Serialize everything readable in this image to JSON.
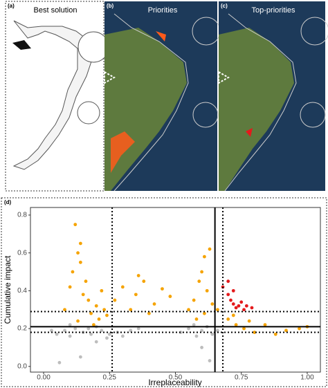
{
  "panels": [
    {
      "label": "(a)",
      "title": "Best solution"
    },
    {
      "label": "(b)",
      "title": "Priorities"
    },
    {
      "label": "(c)",
      "title": "Top-priorities"
    }
  ],
  "chart_data": {
    "type": "scatter",
    "panel_label": "(d)",
    "x_label": "Irreplaceability",
    "y_label": "Cumulative impact",
    "xlim": [
      -0.05,
      1.05
    ],
    "ylim": [
      -0.03,
      0.84
    ],
    "xticks": [
      {
        "value": 0,
        "label": "0.00"
      },
      {
        "value": 0.25,
        "label": "0.25"
      },
      {
        "value": 0.5,
        "label": "0.50"
      },
      {
        "value": 0.75,
        "label": "0.75"
      },
      {
        "value": 1,
        "label": "1.00"
      }
    ],
    "yticks": [
      {
        "value": 0,
        "label": "0.0"
      },
      0.2,
      0.4,
      0.6,
      0.8
    ],
    "grid": false,
    "reference_lines": {
      "x": [
        {
          "value": 0.26,
          "style": "dotted"
        },
        {
          "value": 0.65,
          "style": "solid"
        },
        {
          "value": 0.68,
          "style": "dotted"
        }
      ],
      "y": [
        {
          "value": 0.18,
          "style": "dotted"
        },
        {
          "value": 0.21,
          "style": "solid"
        },
        {
          "value": 0.29,
          "style": "dotted"
        }
      ]
    },
    "series": [
      {
        "color": "#bdbdbd",
        "x": [
          0.05,
          0.08,
          0.1,
          0.12,
          0.15,
          0.18,
          0.2,
          0.22,
          0.25,
          0.28,
          0.3,
          0.33,
          0.36,
          0.52,
          0.55,
          0.58,
          0.6,
          0.62,
          0.64,
          0.66,
          0.06,
          0.14,
          0.2,
          0.6,
          0.63,
          0.03,
          0.1,
          0.17,
          0.24,
          0.57
        ],
        "y": [
          0.17,
          0.19,
          0.16,
          0.2,
          0.18,
          0.17,
          0.21,
          0.19,
          0.17,
          0.18,
          0.16,
          0.19,
          0.2,
          0.18,
          0.2,
          0.16,
          0.19,
          0.21,
          0.17,
          0.19,
          0.02,
          0.05,
          0.13,
          0.1,
          0.03,
          0.19,
          0.22,
          0.2,
          0.15,
          0.22
        ]
      },
      {
        "color": "#f5a300",
        "x": [
          0.08,
          0.1,
          0.11,
          0.13,
          0.14,
          0.15,
          0.16,
          0.17,
          0.18,
          0.2,
          0.21,
          0.22,
          0.23,
          0.24,
          0.12,
          0.14,
          0.19,
          0.13,
          0.27,
          0.3,
          0.33,
          0.35,
          0.38,
          0.4,
          0.42,
          0.45,
          0.48,
          0.36,
          0.55,
          0.57,
          0.59,
          0.6,
          0.61,
          0.62,
          0.63,
          0.64,
          0.58,
          0.61,
          0.66,
          0.7,
          0.73,
          0.76,
          0.8,
          0.84,
          0.88,
          0.92,
          0.97,
          1.0,
          0.72,
          0.78
        ],
        "y": [
          0.3,
          0.42,
          0.5,
          0.6,
          0.55,
          0.38,
          0.45,
          0.35,
          0.28,
          0.32,
          0.25,
          0.4,
          0.3,
          0.27,
          0.75,
          0.65,
          0.22,
          0.24,
          0.35,
          0.42,
          0.3,
          0.38,
          0.45,
          0.28,
          0.33,
          0.41,
          0.37,
          0.48,
          0.3,
          0.35,
          0.45,
          0.5,
          0.58,
          0.4,
          0.62,
          0.33,
          0.25,
          0.28,
          0.3,
          0.25,
          0.22,
          0.2,
          0.18,
          0.22,
          0.17,
          0.19,
          0.2,
          0.21,
          0.27,
          0.24
        ]
      },
      {
        "color": "#e41a1c",
        "x": [
          0.68,
          0.7,
          0.71,
          0.72,
          0.73,
          0.74,
          0.75,
          0.76,
          0.77,
          0.79,
          0.7,
          0.72
        ],
        "y": [
          0.42,
          0.38,
          0.35,
          0.33,
          0.31,
          0.32,
          0.34,
          0.3,
          0.32,
          0.31,
          0.45,
          0.4
        ]
      }
    ]
  }
}
